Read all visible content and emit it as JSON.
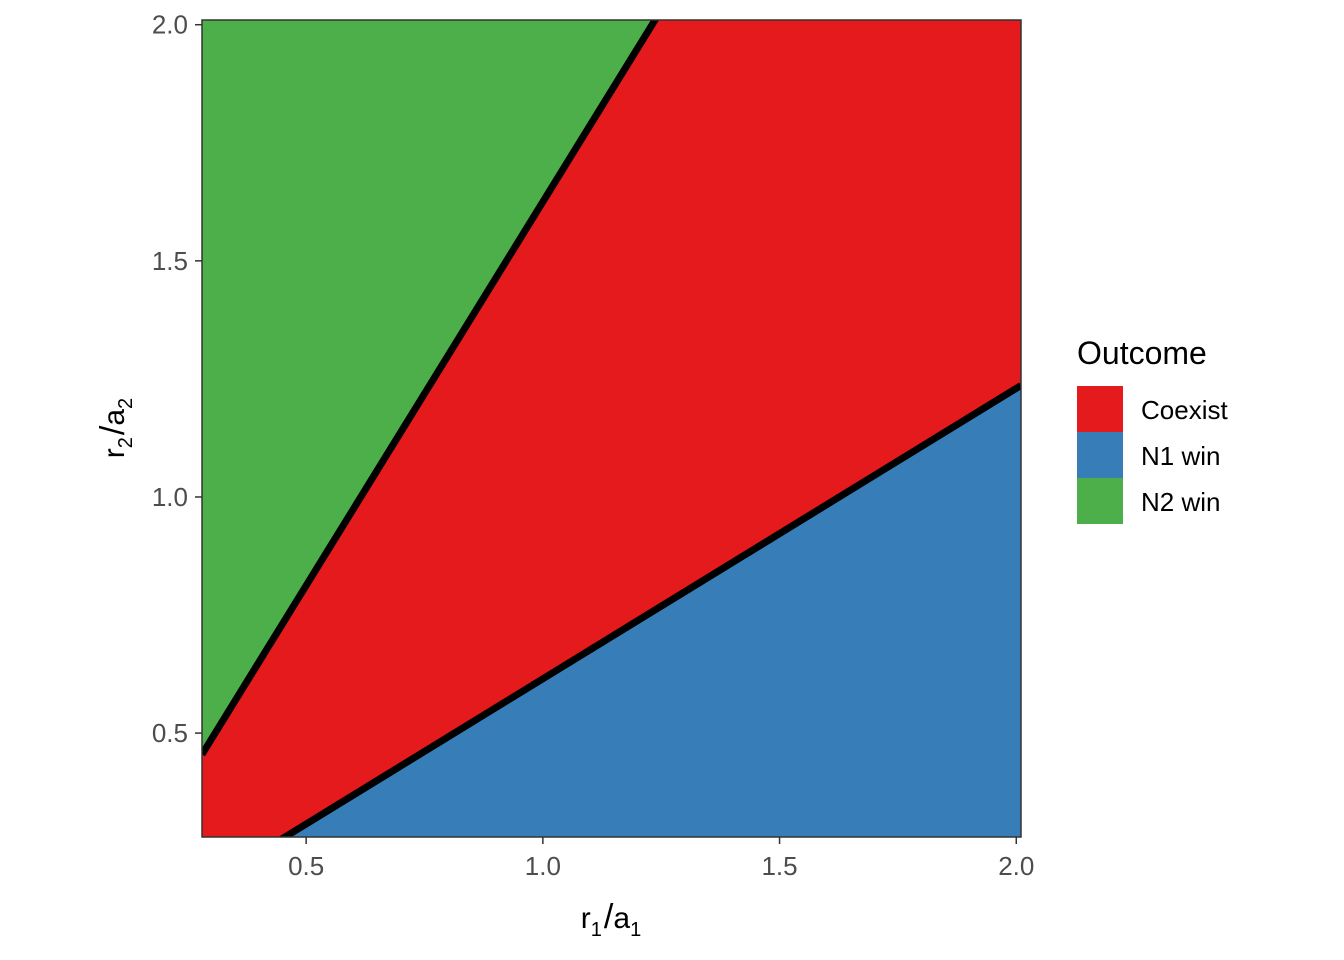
{
  "chart_data": {
    "type": "area",
    "title": "",
    "xlabel": {
      "main": "r",
      "sub": "1",
      "sep": "/",
      "main2": "a",
      "sub2": "1"
    },
    "ylabel": {
      "main": "r",
      "sub": "2",
      "sep": "/",
      "main2": "a",
      "sub2": "2"
    },
    "xlim": [
      0.28,
      2.01
    ],
    "ylim": [
      0.28,
      2.01
    ],
    "x_ticks": [
      {
        "value": 0.5,
        "label": "0.5"
      },
      {
        "value": 1.0,
        "label": "1.0"
      },
      {
        "value": 1.5,
        "label": "1.5"
      },
      {
        "value": 2.0,
        "label": "2.0"
      }
    ],
    "y_ticks": [
      {
        "value": 0.5,
        "label": "0.5"
      },
      {
        "value": 1.0,
        "label": "1.0"
      },
      {
        "value": 1.5,
        "label": "1.5"
      },
      {
        "value": 2.0,
        "label": "2.0"
      }
    ],
    "boundaries": [
      {
        "name": "upper",
        "slope": 1.625,
        "intercept": 0.0,
        "color": "#000000"
      },
      {
        "name": "lower",
        "slope": 0.615,
        "intercept": 0.0,
        "color": "#000000"
      }
    ],
    "legend": {
      "title": "Outcome",
      "position": "right",
      "entries": [
        {
          "label": "Coexist",
          "color": "#E41A1C"
        },
        {
          "label": "N1 win",
          "color": "#377EB8"
        },
        {
          "label": "N2 win",
          "color": "#4DAF4A"
        }
      ]
    },
    "regions": [
      {
        "label": "N2 win",
        "color": "#4DAF4A",
        "where": "above upper"
      },
      {
        "label": "Coexist",
        "color": "#E41A1C",
        "where": "between"
      },
      {
        "label": "N1 win",
        "color": "#377EB8",
        "where": "below lower"
      }
    ],
    "grid": false
  }
}
